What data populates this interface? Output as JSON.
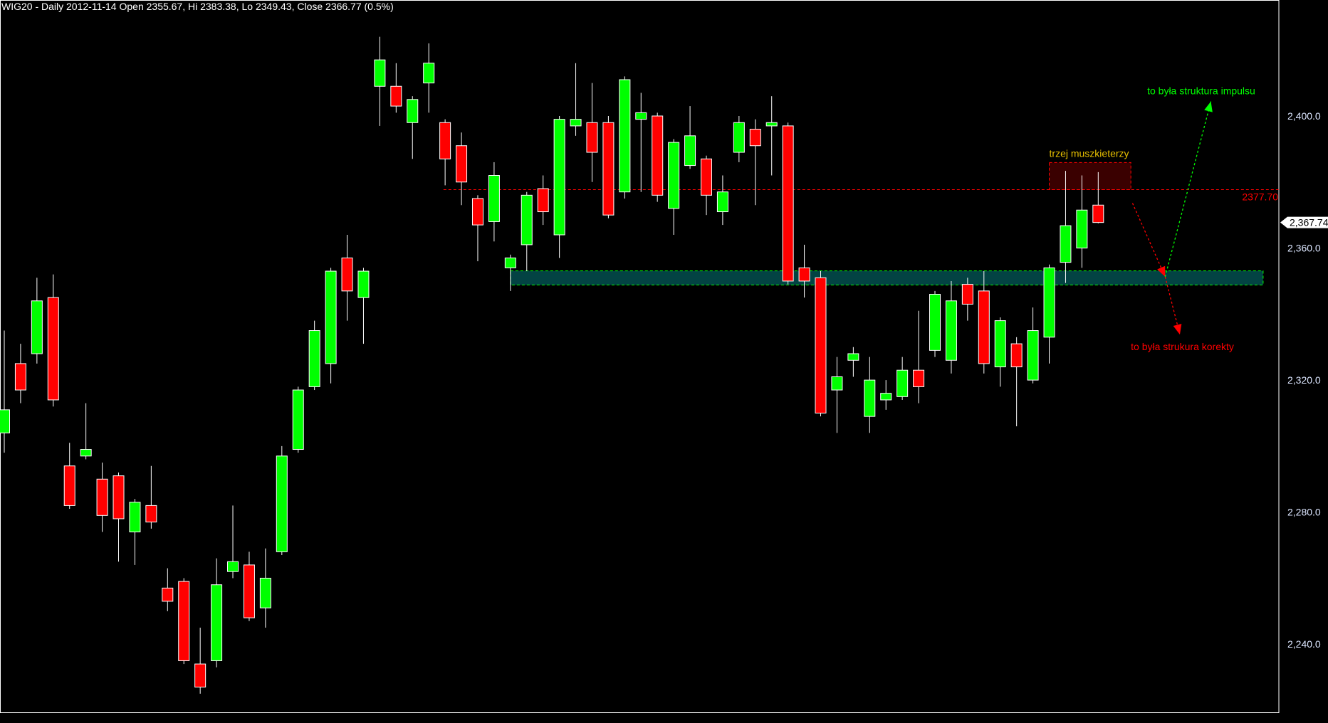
{
  "title": "WIG20 - Daily 2012-11-14 Open 2355.67, Hi 2383.38, Lo 2349.43, Close 2366.77 (0.5%)",
  "colors": {
    "background": "#000000",
    "up": "#00ff00",
    "down": "#ff0000",
    "wick": "#ffffff",
    "axis_text": "#dce6ff",
    "zone": "#034343",
    "box": "#3a0000"
  },
  "chart_data": {
    "type": "candlestick",
    "ylim": [
      2220,
      2435
    ],
    "yticks": [
      2240,
      2280,
      2320,
      2360,
      2400
    ],
    "ytick_labels": [
      "2,240.0",
      "2,280.0",
      "2,320.0",
      "2,360.0",
      "2,400.0"
    ],
    "last_price_label": "2,367.74",
    "last_price": 2367.74,
    "grid": false,
    "ohlc": [
      [
        2304,
        2335,
        2298,
        2311
      ],
      [
        2325,
        2331,
        2313,
        2317
      ],
      [
        2328,
        2351,
        2325,
        2344
      ],
      [
        2345,
        2352,
        2312,
        2314
      ],
      [
        2294,
        2301,
        2281,
        2282
      ],
      [
        2297,
        2313,
        2296,
        2299
      ],
      [
        2290,
        2295,
        2274,
        2279
      ],
      [
        2291,
        2292,
        2265,
        2278
      ],
      [
        2274,
        2284,
        2264,
        2283
      ],
      [
        2282,
        2294,
        2275,
        2277
      ],
      [
        2257,
        2263,
        2250,
        2253
      ],
      [
        2259,
        2260,
        2234,
        2235
      ],
      [
        2234,
        2245,
        2225,
        2227
      ],
      [
        2235,
        2266,
        2233,
        2258
      ],
      [
        2262,
        2282,
        2260,
        2265
      ],
      [
        2264,
        2268,
        2247,
        2248
      ],
      [
        2251,
        2269,
        2245,
        2260
      ],
      [
        2268,
        2300,
        2267,
        2297
      ],
      [
        2299,
        2318,
        2298,
        2317
      ],
      [
        2318,
        2338,
        2317,
        2335
      ],
      [
        2325,
        2354,
        2319,
        2353
      ],
      [
        2357,
        2364,
        2338,
        2347
      ],
      [
        2345,
        2354,
        2331,
        2353
      ],
      [
        2409,
        2424,
        2397,
        2417
      ],
      [
        2409,
        2416,
        2401,
        2403
      ],
      [
        2398,
        2406,
        2387,
        2405
      ],
      [
        2410,
        2422,
        2401,
        2416
      ],
      [
        2398,
        2399,
        2379,
        2387
      ],
      [
        2391,
        2395,
        2373,
        2380
      ],
      [
        2375,
        2376,
        2356,
        2367
      ],
      [
        2368,
        2386,
        2362,
        2382
      ],
      [
        2354,
        2358,
        2347,
        2357
      ],
      [
        2361,
        2377,
        2353,
        2376
      ],
      [
        2378,
        2382,
        2367,
        2371
      ],
      [
        2364,
        2400,
        2357,
        2399
      ],
      [
        2397,
        2416,
        2394,
        2399
      ],
      [
        2398,
        2410,
        2380,
        2389
      ],
      [
        2398,
        2400,
        2369,
        2370
      ],
      [
        2377,
        2412,
        2375,
        2411
      ],
      [
        2399,
        2407,
        2377,
        2401
      ],
      [
        2400,
        2401,
        2374,
        2376
      ],
      [
        2372,
        2393,
        2364,
        2392
      ],
      [
        2385,
        2403,
        2384,
        2394
      ],
      [
        2387,
        2388,
        2370,
        2376
      ],
      [
        2371,
        2382,
        2367,
        2377
      ],
      [
        2389,
        2400,
        2386,
        2398
      ],
      [
        2396,
        2399,
        2373,
        2391
      ],
      [
        2397,
        2406,
        2382,
        2398
      ],
      [
        2397,
        2398,
        2349,
        2350
      ],
      [
        2354,
        2361,
        2345,
        2350
      ],
      [
        2351,
        2353,
        2309,
        2310
      ],
      [
        2317,
        2327,
        2304,
        2321
      ],
      [
        2326,
        2330,
        2321,
        2328
      ],
      [
        2309,
        2327,
        2304,
        2320
      ],
      [
        2314,
        2320,
        2311,
        2316
      ],
      [
        2315,
        2327,
        2314,
        2323
      ],
      [
        2323,
        2341,
        2313,
        2318
      ],
      [
        2329,
        2347,
        2327,
        2346
      ],
      [
        2326,
        2350,
        2322,
        2344
      ],
      [
        2349,
        2351,
        2338,
        2343
      ],
      [
        2347,
        2353,
        2322,
        2325
      ],
      [
        2324,
        2339,
        2318,
        2338
      ],
      [
        2331,
        2333,
        2306,
        2324
      ],
      [
        2320,
        2342,
        2319,
        2335
      ],
      [
        2333,
        2355,
        2325,
        2354
      ],
      [
        2355.67,
        2383.38,
        2349.43,
        2366.77
      ],
      [
        2360,
        2382,
        2354,
        2371.5
      ],
      [
        2373,
        2383,
        2367.5,
        2367.74
      ]
    ],
    "annotations": {
      "resistance_line": {
        "value": 2377.7,
        "label": "2377.70",
        "from_bar": 26.9,
        "color": "#ff0000"
      },
      "box": {
        "label": "trzej muszkieterzy",
        "from_bar": 64.0,
        "to_bar": 69.0,
        "top": 2385.9,
        "bottom": 2377.7,
        "label_color": "#e8c000"
      },
      "zone": {
        "from_bar": 31.0,
        "to_bar": 77.1,
        "top": 2353.1,
        "bottom": 2348.8
      },
      "arrow_down": {
        "points": [
          [
            69.1,
            2373.6
          ],
          [
            71.1,
            2351.3
          ],
          [
            72.0,
            2333.8
          ]
        ],
        "color": "#ff0000"
      },
      "arrow_up": {
        "points": [
          [
            71.1,
            2351.3
          ],
          [
            73.9,
            2404.4
          ]
        ],
        "color": "#00ff00"
      },
      "label_impulse": {
        "text": "to była struktura impulsu",
        "bar": 70.0,
        "value": 2407.7,
        "color": "#00ff00"
      },
      "label_correction": {
        "text": "to była strukura korekty",
        "bar": 69.0,
        "value": 2330.2,
        "color": "#ff0000"
      }
    }
  }
}
